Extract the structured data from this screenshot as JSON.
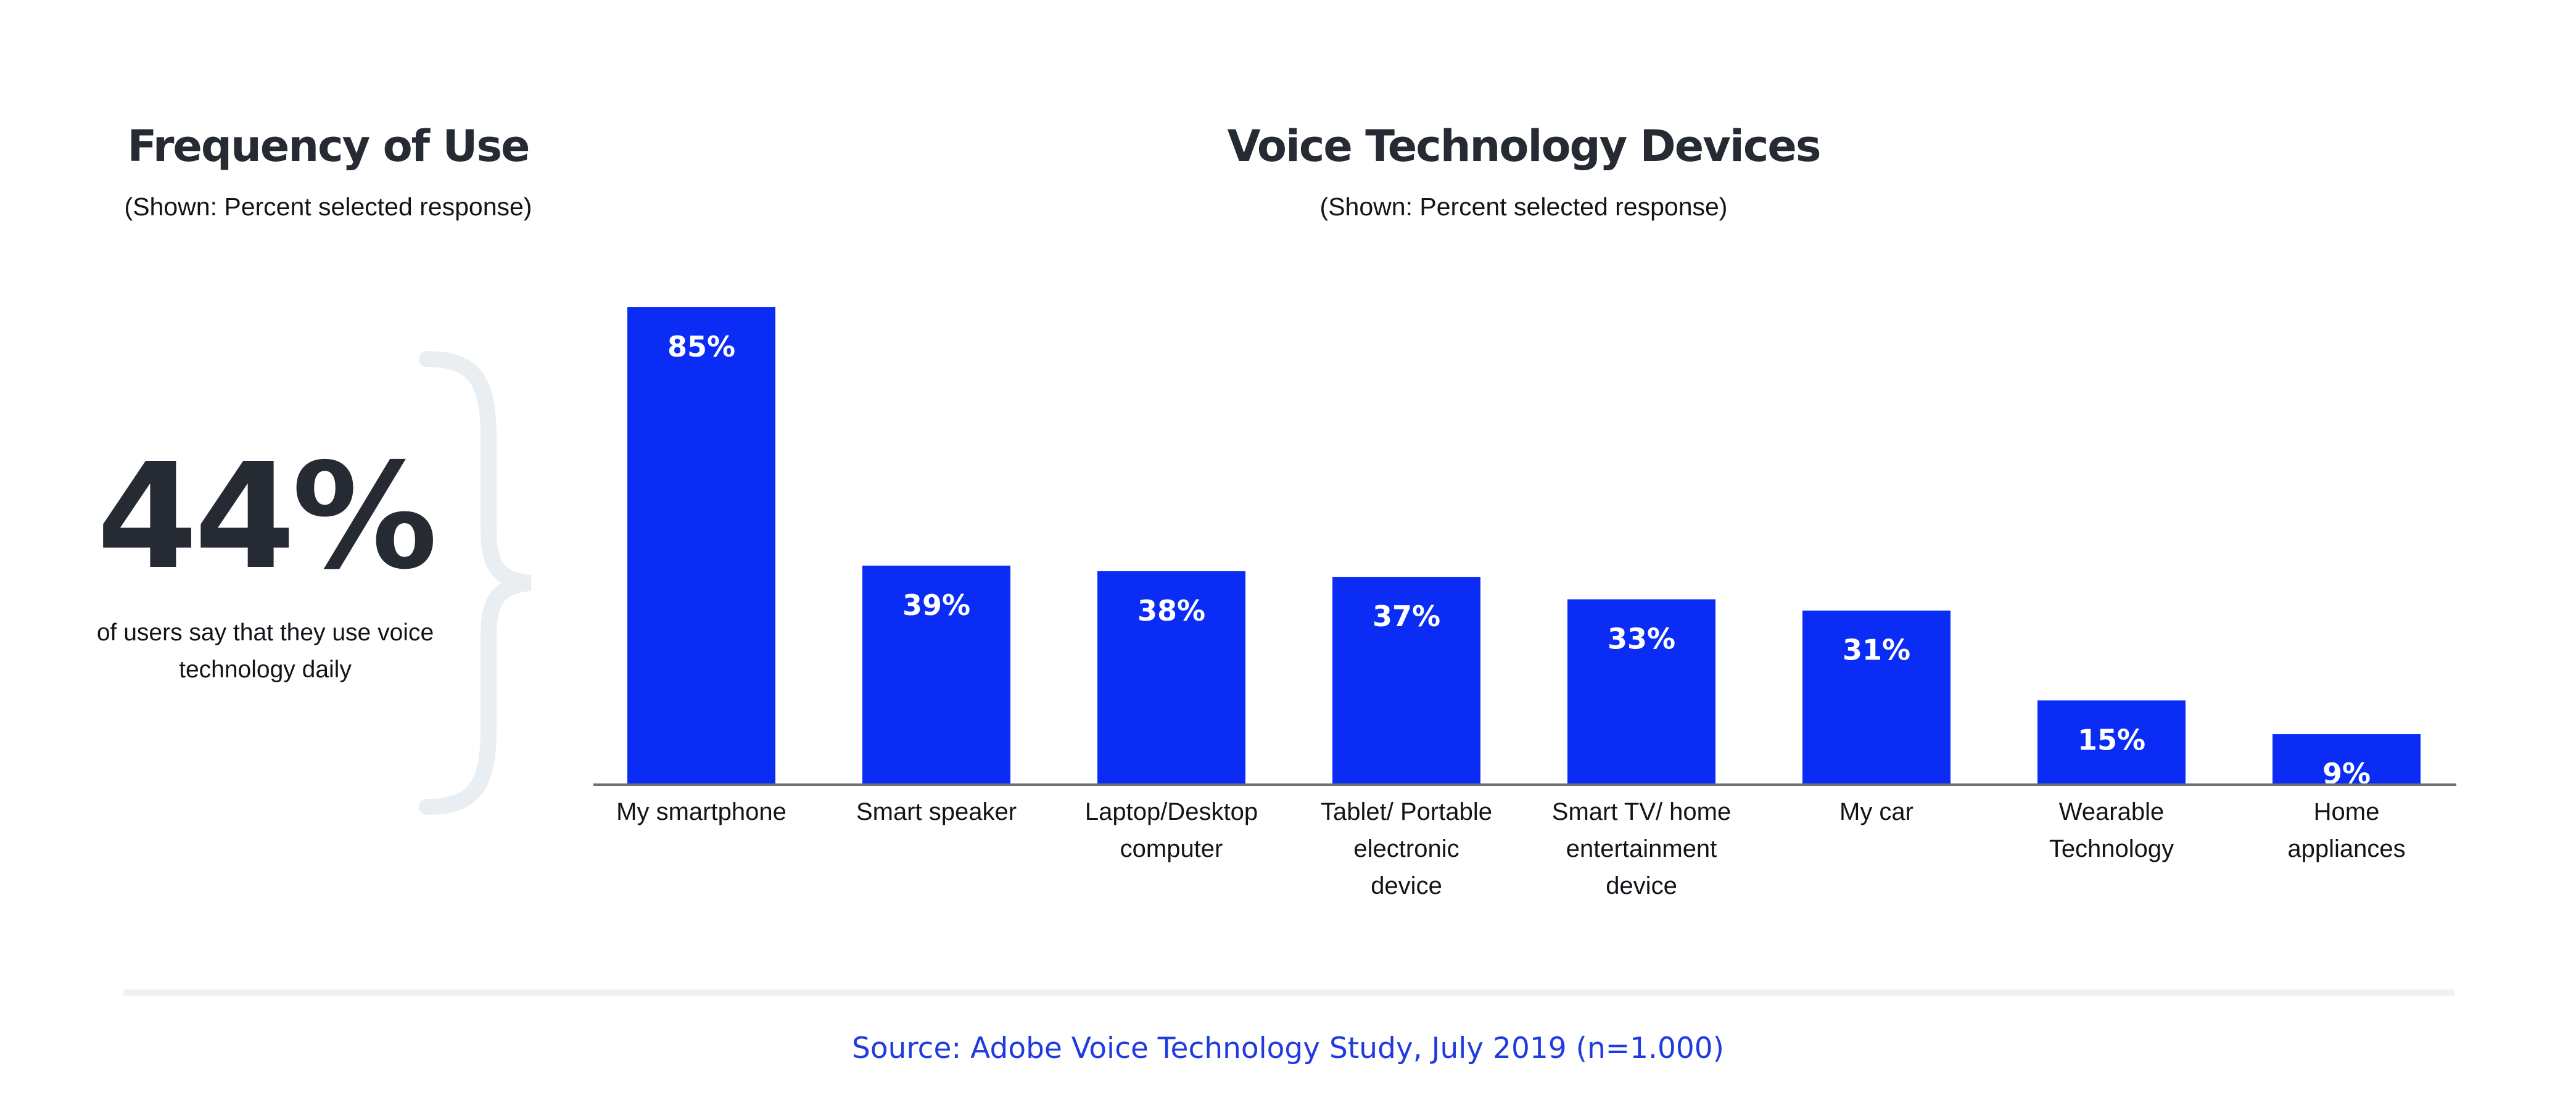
{
  "left_panel": {
    "title": "Frequency of Use",
    "subtitle": "(Shown: Percent selected response)",
    "stat_value": "44%",
    "stat_description": "of users  say that they use voice technology daily"
  },
  "colors": {
    "bar": "#0a2cf5",
    "bar_label": "#ffffff",
    "text": "#262b33",
    "brace": "#e9eef3",
    "divider": "#eef2f6",
    "source": "#1f3be0"
  },
  "chart_data": {
    "type": "bar",
    "title": "Voice Technology Devices",
    "subtitle": "(Shown: Percent selected response)",
    "categories": [
      [
        "My smartphone"
      ],
      [
        "Smart speaker"
      ],
      [
        "Laptop/Desktop",
        "computer"
      ],
      [
        "Tablet/ Portable",
        "electronic",
        "device"
      ],
      [
        "Smart TV/ home",
        "entertainment",
        "device"
      ],
      [
        "My car"
      ],
      [
        "Wearable",
        "Technology"
      ],
      [
        "Home",
        "appliances"
      ]
    ],
    "values": [
      85,
      39,
      38,
      37,
      33,
      31,
      15,
      9
    ],
    "data_labels": [
      "85%",
      "39%",
      "38%",
      "37%",
      "33%",
      "31%",
      "15%",
      "9%"
    ],
    "xlabel": "",
    "ylabel": "",
    "ylim": [
      0,
      85
    ],
    "grid": false
  },
  "footer": {
    "source": "Source: Adobe Voice Technology Study, July 2019 (n=1.000)"
  }
}
